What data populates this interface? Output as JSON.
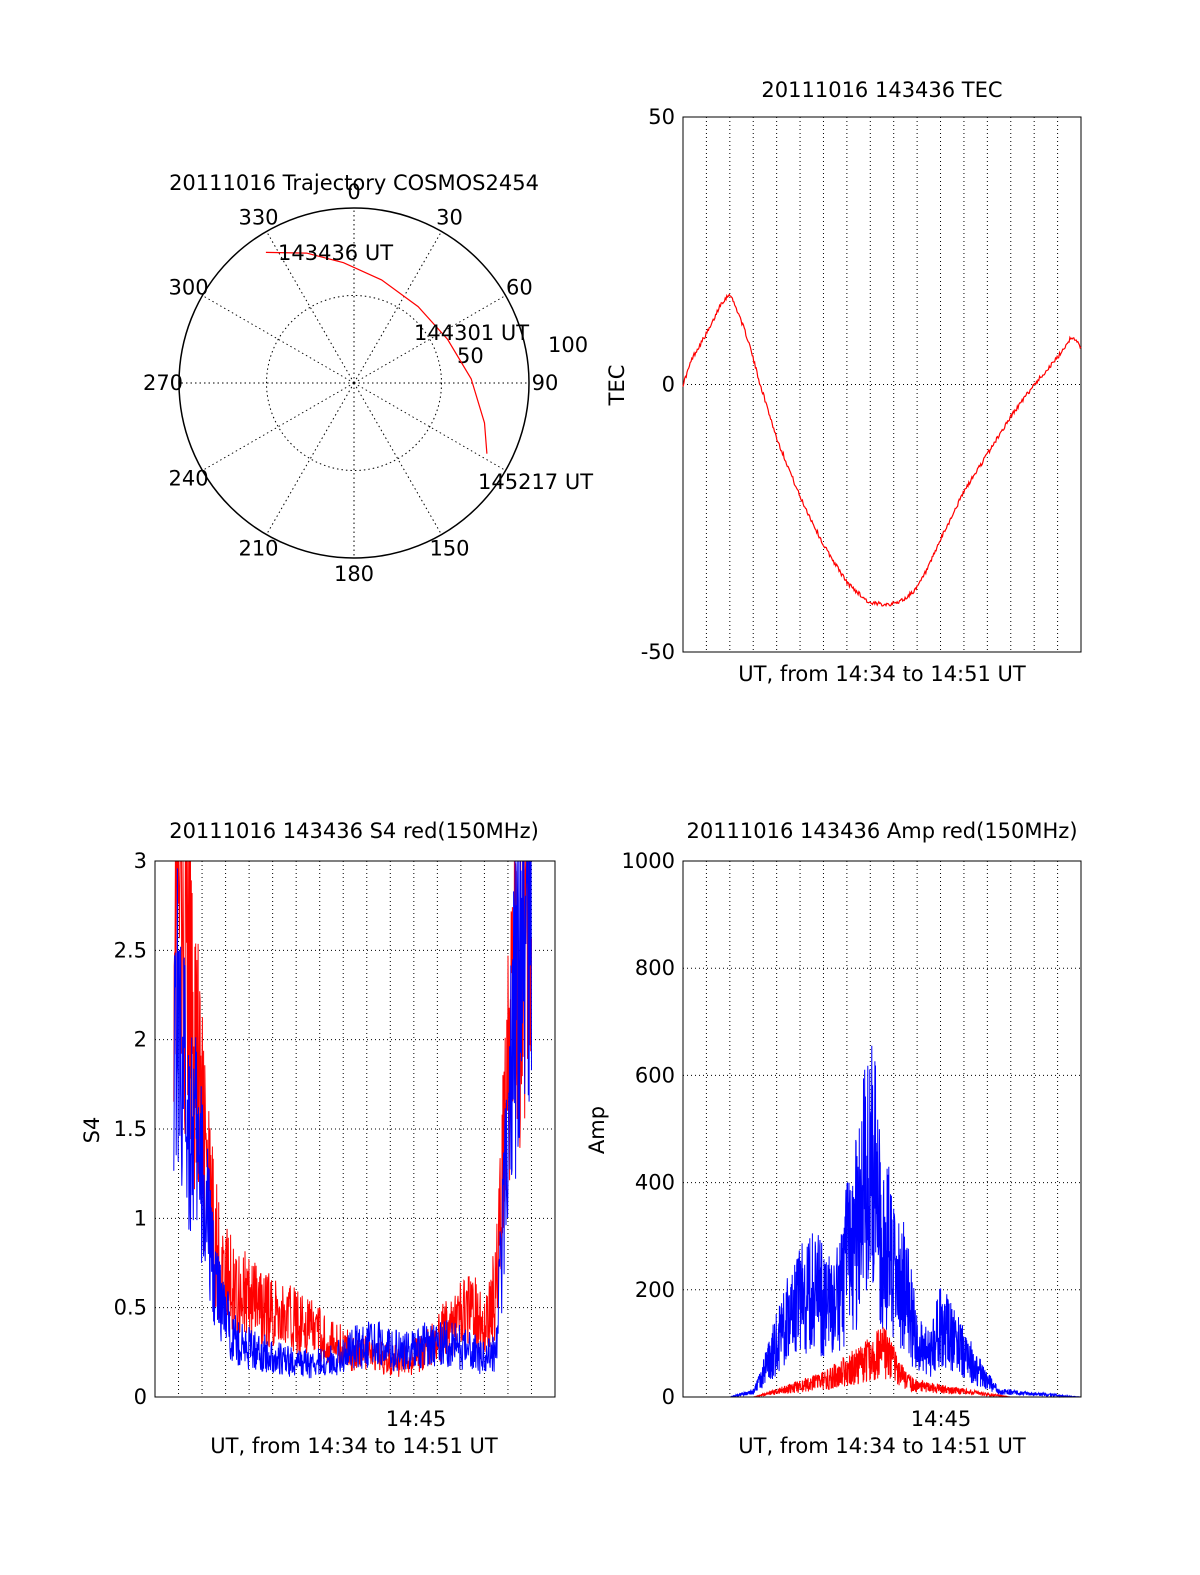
{
  "chart_data": [
    {
      "type": "polar",
      "title": "20111016 Trajectory COSMOS2454",
      "angle_labels": [
        "0",
        "30",
        "60",
        "90",
        "150",
        "180",
        "210",
        "240",
        "270",
        "300",
        "330"
      ],
      "radius_labels": [
        "50",
        "100"
      ],
      "rlim": [
        0,
        100
      ],
      "grid": true,
      "trajectory": {
        "color": "#ff0000",
        "points": [
          {
            "az": 326,
            "r": 90
          },
          {
            "az": 340,
            "r": 79
          },
          {
            "az": 355,
            "r": 69
          },
          {
            "az": 15,
            "r": 61
          },
          {
            "az": 40,
            "r": 57
          },
          {
            "az": 65,
            "r": 59
          },
          {
            "az": 88,
            "r": 67
          },
          {
            "az": 107,
            "r": 78
          },
          {
            "az": 118,
            "r": 86
          }
        ]
      },
      "annotations": [
        "143436 UT",
        "144301 UT",
        "145217 UT"
      ]
    },
    {
      "type": "line",
      "title": "20111016 143436 TEC",
      "xlabel": "UT, from 14:34 to 14:51 UT",
      "ylabel": "TEC",
      "xlim": [
        "14:34",
        "14:51"
      ],
      "ylim": [
        -50,
        50
      ],
      "yticks": [
        "-50",
        "0",
        "50"
      ],
      "grid": true,
      "series": [
        {
          "color": "#ff0000",
          "x_minutes": [
            0.0,
            0.4,
            0.8,
            1.2,
            1.6,
            2.0,
            2.4,
            2.8,
            3.3,
            4.0,
            5.0,
            6.0,
            7.0,
            8.0,
            9.0,
            9.5,
            10.0,
            10.5,
            11.0,
            12.0,
            13.0,
            14.0,
            15.0,
            16.0,
            16.6,
            16.8,
            17.0
          ],
          "y": [
            0,
            5,
            8,
            11,
            15,
            17,
            13,
            8,
            0,
            -10,
            -21,
            -30,
            -37,
            -41,
            -41,
            -40,
            -38,
            -34,
            -29,
            -20,
            -13,
            -6,
            0,
            5,
            9,
            8,
            7
          ]
        }
      ]
    },
    {
      "type": "line",
      "title": "20111016 143436 S4 red(150MHz)",
      "xlabel": "UT, from 14:34 to 14:51 UT",
      "ylabel": "S4",
      "xlim": [
        "14:34",
        "14:51"
      ],
      "xtick_label": "14:45",
      "ylim": [
        0,
        3
      ],
      "yticks": [
        "0",
        "0.5",
        "1",
        "1.5",
        "2",
        "2.5",
        "3"
      ],
      "grid": true,
      "series": [
        {
          "color": "#ff0000",
          "x_minutes": [
            0.8,
            1.2,
            1.6,
            2.0,
            2.4,
            2.8,
            3.5,
            4.5,
            5.5,
            6.5,
            7.5,
            8.5,
            9.5,
            10.5,
            11.5,
            12.5,
            13.5,
            14.0,
            14.5,
            15.0,
            15.5,
            16.0
          ],
          "y": [
            3.0,
            2.7,
            2.2,
            1.5,
            1.0,
            0.7,
            0.6,
            0.5,
            0.45,
            0.4,
            0.3,
            0.25,
            0.22,
            0.2,
            0.25,
            0.4,
            0.5,
            0.4,
            0.6,
            2.0,
            2.5,
            3.0
          ]
        },
        {
          "color": "#0000ff",
          "x_minutes": [
            0.8,
            1.2,
            1.6,
            2.0,
            2.4,
            2.8,
            3.5,
            4.5,
            5.5,
            6.5,
            7.5,
            8.5,
            9.5,
            10.5,
            11.5,
            12.5,
            13.5,
            14.0,
            14.5,
            15.0,
            15.5,
            16.0
          ],
          "y": [
            2.3,
            1.8,
            1.5,
            1.2,
            0.8,
            0.5,
            0.3,
            0.25,
            0.2,
            0.18,
            0.2,
            0.28,
            0.3,
            0.25,
            0.3,
            0.3,
            0.25,
            0.22,
            0.25,
            1.5,
            2.6,
            3.0
          ]
        }
      ]
    },
    {
      "type": "line",
      "title": "20111016 143436 Amp red(150MHz)",
      "xlabel": "UT, from 14:34 to 14:51 UT",
      "ylabel": "Amp",
      "xlim": [
        "14:34",
        "14:51"
      ],
      "xtick_label": "14:45",
      "ylim": [
        0,
        1000
      ],
      "yticks": [
        "0",
        "200",
        "400",
        "600",
        "800",
        "1000"
      ],
      "grid": true,
      "series": [
        {
          "color": "#0000ff",
          "x_minutes": [
            0,
            2,
            3,
            3.5,
            4.5,
            5.5,
            6.5,
            7.0,
            7.5,
            8.0,
            8.5,
            9.0,
            9.5,
            10.0,
            10.5,
            11.0,
            12.0,
            13.0,
            13.5,
            17.0
          ],
          "y": [
            0,
            0,
            10,
            50,
            150,
            200,
            160,
            250,
            320,
            460,
            300,
            250,
            200,
            100,
            80,
            140,
            80,
            30,
            10,
            0
          ]
        },
        {
          "color": "#ff0000",
          "x_minutes": [
            0,
            3,
            4,
            5,
            6,
            7,
            8,
            8.5,
            9,
            9.5,
            10,
            11,
            12,
            13,
            14,
            17
          ],
          "y": [
            0,
            0,
            10,
            20,
            30,
            50,
            70,
            90,
            60,
            30,
            20,
            15,
            10,
            5,
            0,
            0
          ]
        }
      ]
    }
  ]
}
